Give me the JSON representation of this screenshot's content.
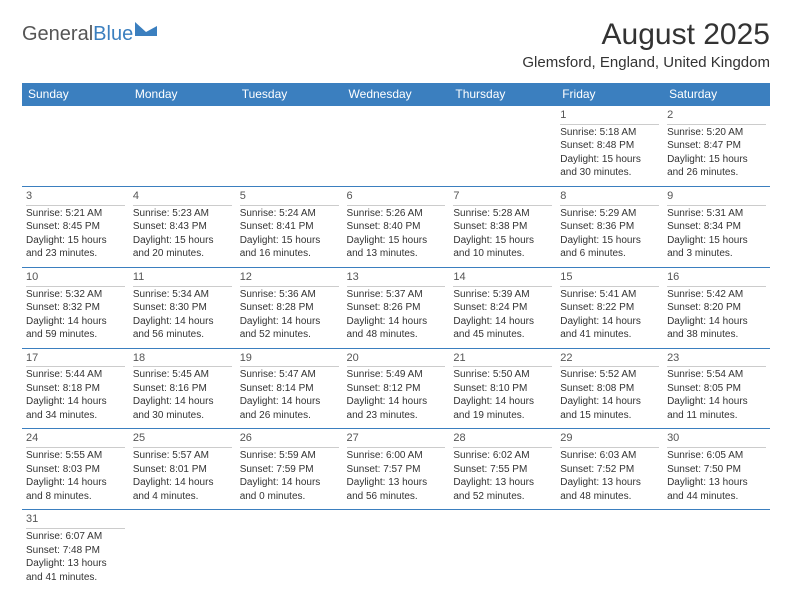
{
  "logo": {
    "part1": "General",
    "part2": "Blue"
  },
  "title": "August 2025",
  "location": "Glemsford, England, United Kingdom",
  "colors": {
    "header_bg": "#3b7fbf",
    "header_fg": "#ffffff",
    "cell_border": "#3b7fbf",
    "daynum_border": "#cccccc",
    "text": "#333333",
    "logo_blue": "#3b7fbf",
    "logo_grey": "#555555"
  },
  "weekdays": [
    "Sunday",
    "Monday",
    "Tuesday",
    "Wednesday",
    "Thursday",
    "Friday",
    "Saturday"
  ],
  "first_weekday_index": 5,
  "days": [
    {
      "n": 1,
      "sunrise": "5:18 AM",
      "sunset": "8:48 PM",
      "daylight": "15 hours and 30 minutes."
    },
    {
      "n": 2,
      "sunrise": "5:20 AM",
      "sunset": "8:47 PM",
      "daylight": "15 hours and 26 minutes."
    },
    {
      "n": 3,
      "sunrise": "5:21 AM",
      "sunset": "8:45 PM",
      "daylight": "15 hours and 23 minutes."
    },
    {
      "n": 4,
      "sunrise": "5:23 AM",
      "sunset": "8:43 PM",
      "daylight": "15 hours and 20 minutes."
    },
    {
      "n": 5,
      "sunrise": "5:24 AM",
      "sunset": "8:41 PM",
      "daylight": "15 hours and 16 minutes."
    },
    {
      "n": 6,
      "sunrise": "5:26 AM",
      "sunset": "8:40 PM",
      "daylight": "15 hours and 13 minutes."
    },
    {
      "n": 7,
      "sunrise": "5:28 AM",
      "sunset": "8:38 PM",
      "daylight": "15 hours and 10 minutes."
    },
    {
      "n": 8,
      "sunrise": "5:29 AM",
      "sunset": "8:36 PM",
      "daylight": "15 hours and 6 minutes."
    },
    {
      "n": 9,
      "sunrise": "5:31 AM",
      "sunset": "8:34 PM",
      "daylight": "15 hours and 3 minutes."
    },
    {
      "n": 10,
      "sunrise": "5:32 AM",
      "sunset": "8:32 PM",
      "daylight": "14 hours and 59 minutes."
    },
    {
      "n": 11,
      "sunrise": "5:34 AM",
      "sunset": "8:30 PM",
      "daylight": "14 hours and 56 minutes."
    },
    {
      "n": 12,
      "sunrise": "5:36 AM",
      "sunset": "8:28 PM",
      "daylight": "14 hours and 52 minutes."
    },
    {
      "n": 13,
      "sunrise": "5:37 AM",
      "sunset": "8:26 PM",
      "daylight": "14 hours and 48 minutes."
    },
    {
      "n": 14,
      "sunrise": "5:39 AM",
      "sunset": "8:24 PM",
      "daylight": "14 hours and 45 minutes."
    },
    {
      "n": 15,
      "sunrise": "5:41 AM",
      "sunset": "8:22 PM",
      "daylight": "14 hours and 41 minutes."
    },
    {
      "n": 16,
      "sunrise": "5:42 AM",
      "sunset": "8:20 PM",
      "daylight": "14 hours and 38 minutes."
    },
    {
      "n": 17,
      "sunrise": "5:44 AM",
      "sunset": "8:18 PM",
      "daylight": "14 hours and 34 minutes."
    },
    {
      "n": 18,
      "sunrise": "5:45 AM",
      "sunset": "8:16 PM",
      "daylight": "14 hours and 30 minutes."
    },
    {
      "n": 19,
      "sunrise": "5:47 AM",
      "sunset": "8:14 PM",
      "daylight": "14 hours and 26 minutes."
    },
    {
      "n": 20,
      "sunrise": "5:49 AM",
      "sunset": "8:12 PM",
      "daylight": "14 hours and 23 minutes."
    },
    {
      "n": 21,
      "sunrise": "5:50 AM",
      "sunset": "8:10 PM",
      "daylight": "14 hours and 19 minutes."
    },
    {
      "n": 22,
      "sunrise": "5:52 AM",
      "sunset": "8:08 PM",
      "daylight": "14 hours and 15 minutes."
    },
    {
      "n": 23,
      "sunrise": "5:54 AM",
      "sunset": "8:05 PM",
      "daylight": "14 hours and 11 minutes."
    },
    {
      "n": 24,
      "sunrise": "5:55 AM",
      "sunset": "8:03 PM",
      "daylight": "14 hours and 8 minutes."
    },
    {
      "n": 25,
      "sunrise": "5:57 AM",
      "sunset": "8:01 PM",
      "daylight": "14 hours and 4 minutes."
    },
    {
      "n": 26,
      "sunrise": "5:59 AM",
      "sunset": "7:59 PM",
      "daylight": "14 hours and 0 minutes."
    },
    {
      "n": 27,
      "sunrise": "6:00 AM",
      "sunset": "7:57 PM",
      "daylight": "13 hours and 56 minutes."
    },
    {
      "n": 28,
      "sunrise": "6:02 AM",
      "sunset": "7:55 PM",
      "daylight": "13 hours and 52 minutes."
    },
    {
      "n": 29,
      "sunrise": "6:03 AM",
      "sunset": "7:52 PM",
      "daylight": "13 hours and 48 minutes."
    },
    {
      "n": 30,
      "sunrise": "6:05 AM",
      "sunset": "7:50 PM",
      "daylight": "13 hours and 44 minutes."
    },
    {
      "n": 31,
      "sunrise": "6:07 AM",
      "sunset": "7:48 PM",
      "daylight": "13 hours and 41 minutes."
    }
  ],
  "labels": {
    "sunrise": "Sunrise:",
    "sunset": "Sunset:",
    "daylight": "Daylight:"
  }
}
